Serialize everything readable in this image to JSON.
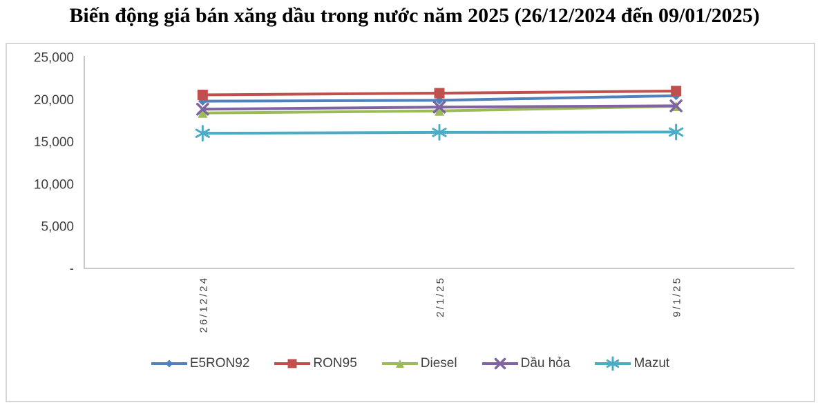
{
  "title": "Biến động giá bán xăng dầu trong nước năm 2025 (26/12/2024 đến 09/01/2025)",
  "chart_data": {
    "type": "line",
    "title": "Biến động giá bán xăng dầu trong nước năm 2025 (26/12/2024 đến 09/01/2025)",
    "categories": [
      "26/12/24",
      "2/1/25",
      "9/1/25"
    ],
    "series": [
      {
        "name": "E5RON92",
        "marker": "diamond",
        "color": "#4F81BD",
        "values": [
          19800,
          19900,
          20450
        ]
      },
      {
        "name": "RON95",
        "marker": "square",
        "color": "#C0504D",
        "values": [
          20550,
          20750,
          21000
        ]
      },
      {
        "name": "Diesel",
        "marker": "triangle",
        "color": "#9BBB59",
        "values": [
          18400,
          18650,
          19200
        ]
      },
      {
        "name": "Dầu hỏa",
        "marker": "x",
        "color": "#8064A2",
        "values": [
          18850,
          19100,
          19250
        ]
      },
      {
        "name": "Mazut",
        "marker": "asterisk",
        "color": "#4BACC6",
        "values": [
          16000,
          16100,
          16150
        ]
      }
    ],
    "y_axis": {
      "min": 0,
      "max": 25000,
      "step": 5000,
      "tick_labels": [
        "-",
        "5,000",
        "10,000",
        "15,000",
        "20,000",
        "25,000"
      ]
    },
    "x_axis": {
      "label_rotation": -90
    },
    "legend_position": "bottom",
    "grid": false,
    "axis_color": "#c9c9c9",
    "tick_text_color": "#3f3f3f",
    "legend_text_color": "#404040"
  }
}
